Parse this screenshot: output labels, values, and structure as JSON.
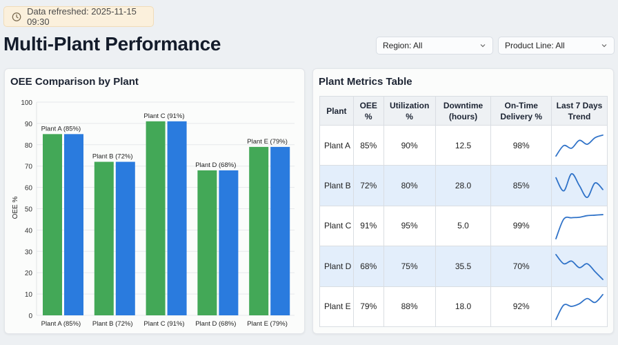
{
  "banner": {
    "icon": "clock-icon",
    "text": "Data refreshed: 2025-11-15 09:30"
  },
  "header": {
    "title": "Multi-Plant Performance"
  },
  "filters": [
    {
      "label": "Region: All"
    },
    {
      "label": "Product Line: All"
    }
  ],
  "chart_card": {
    "title": "OEE Comparison by Plant"
  },
  "chart_data": {
    "type": "bar",
    "ylabel": "OEE %",
    "ylim": [
      0,
      100
    ],
    "yticks": [
      0,
      10,
      20,
      30,
      40,
      50,
      60,
      70,
      80,
      90,
      100
    ],
    "grid": true,
    "categories": [
      "Plant A (85%)",
      "Plant B (72%)",
      "Plant C (91%)",
      "Plant D (68%)",
      "Plant E (79%)"
    ],
    "bar_labels": [
      "Plant A (85%)",
      "Plant B (72%)",
      "Plant C (91%)",
      "Plant D (68%)",
      "Plant E (79%)"
    ],
    "series": [
      {
        "values": [
          85,
          72,
          91,
          68,
          79
        ],
        "color": "#43a857"
      },
      {
        "values": [
          85,
          72,
          91,
          68,
          79
        ],
        "color": "#2a7bde"
      }
    ]
  },
  "table_card": {
    "title": "Plant Metrics Table",
    "columns": [
      "Plant",
      "OEE %",
      "Utilization %",
      "Downtime (hours)",
      "On-Time Delivery %",
      "Last 7 Days Trend"
    ],
    "rows": [
      {
        "plant": "Plant A",
        "oee": "85%",
        "util": "90%",
        "down": "12.5",
        "otd": "98%",
        "trend": [
          0.1,
          0.5,
          0.4,
          0.7,
          0.55,
          0.8,
          0.9
        ]
      },
      {
        "plant": "Plant B",
        "oee": "72%",
        "util": "80%",
        "down": "28.0",
        "otd": "85%",
        "trend": [
          0.8,
          0.3,
          0.95,
          0.5,
          0.05,
          0.6,
          0.35
        ]
      },
      {
        "plant": "Plant C",
        "oee": "91%",
        "util": "95%",
        "down": "5.0",
        "otd": "99%",
        "trend": [
          0.0,
          0.75,
          0.8,
          0.82,
          0.88,
          0.9,
          0.92
        ]
      },
      {
        "plant": "Plant D",
        "oee": "68%",
        "util": "75%",
        "down": "35.5",
        "otd": "70%",
        "trend": [
          0.95,
          0.6,
          0.7,
          0.45,
          0.6,
          0.3,
          0.0
        ]
      },
      {
        "plant": "Plant E",
        "oee": "79%",
        "util": "88%",
        "down": "18.0",
        "otd": "92%",
        "trend": [
          0.0,
          0.55,
          0.5,
          0.6,
          0.8,
          0.65,
          0.95
        ]
      }
    ],
    "trend_color": "#2f72c8"
  }
}
